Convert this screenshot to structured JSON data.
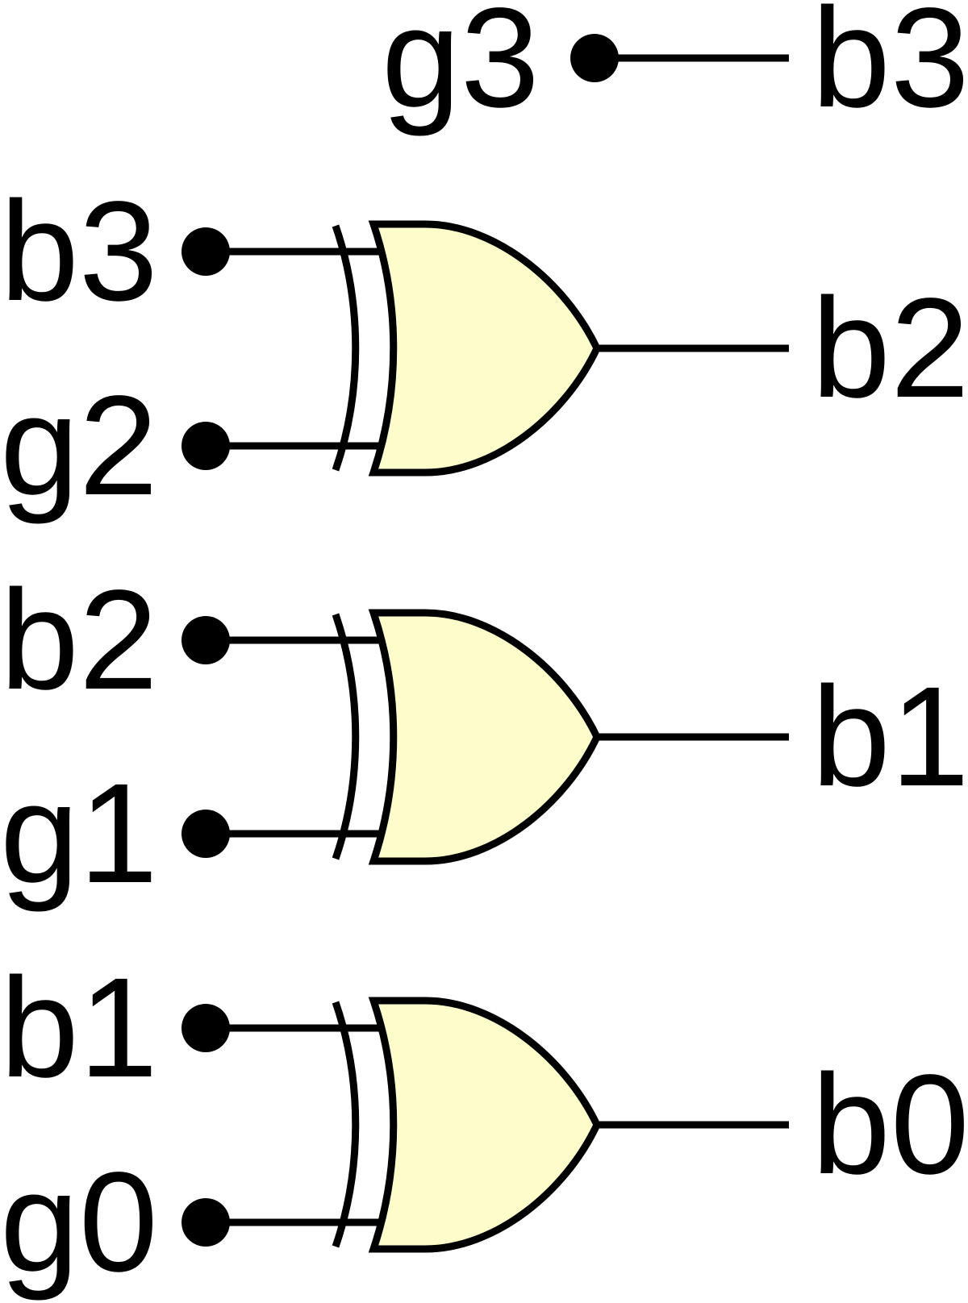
{
  "colors": {
    "gate_fill": "#fdfdcc",
    "line": "#000000",
    "background": "#ffffff"
  },
  "passthrough": {
    "input": "g3",
    "output": "b3"
  },
  "gates": [
    {
      "type": "xor",
      "input_a": "b3",
      "input_b": "g2",
      "output": "b2"
    },
    {
      "type": "xor",
      "input_a": "b2",
      "input_b": "g1",
      "output": "b1"
    },
    {
      "type": "xor",
      "input_a": "b1",
      "input_b": "g0",
      "output": "b0"
    }
  ]
}
